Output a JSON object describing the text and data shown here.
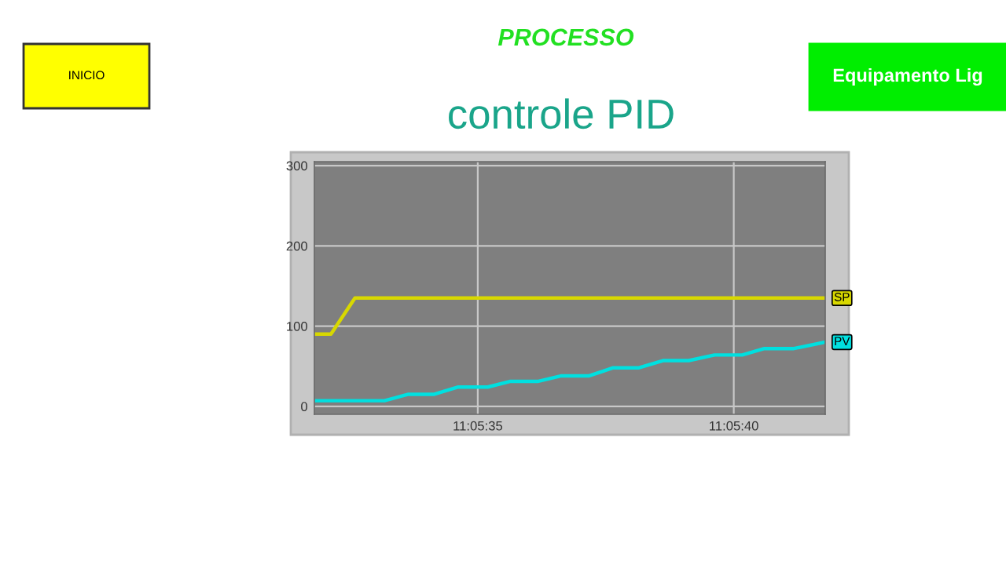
{
  "chart_data": {
    "type": "line",
    "title": "PROCESSO",
    "subtitle": "controle PID",
    "annotations": [
      "INICIO",
      "Equipamento Lig"
    ],
    "x": [
      11.09217,
      11.09255,
      11.09268,
      11.09282,
      11.09295,
      11.09311,
      11.09323,
      11.09338,
      11.09351,
      11.09366,
      11.09379,
      11.09393,
      11.09406,
      11.0942,
      11.09434,
      11.09449,
      11.09461,
      11.09477,
      11.09494
    ],
    "series": [
      {
        "name": "SP",
        "color": "#d8d800",
        "x": [
          11.09217,
          11.09226,
          11.09239,
          11.09494
        ],
        "values": [
          90,
          90,
          135,
          135
        ]
      },
      {
        "name": "PV",
        "color": "#00e0e0",
        "values": [
          7,
          7,
          15,
          15,
          24,
          24,
          31,
          31,
          38,
          38,
          48,
          48,
          57,
          57,
          64,
          64,
          72,
          72,
          80
        ]
      }
    ],
    "xlim": [
      11.09217,
      11.09494
    ],
    "xticks": [
      {
        "value": 11.093056,
        "label": "11:05:35"
      },
      {
        "value": 11.094444,
        "label": "11:05:40"
      }
    ],
    "ylim": [
      -10,
      305
    ],
    "yticks": [
      0,
      100,
      200,
      300
    ],
    "grid": true,
    "marker": "none",
    "line_style": "solid",
    "legend": false
  }
}
